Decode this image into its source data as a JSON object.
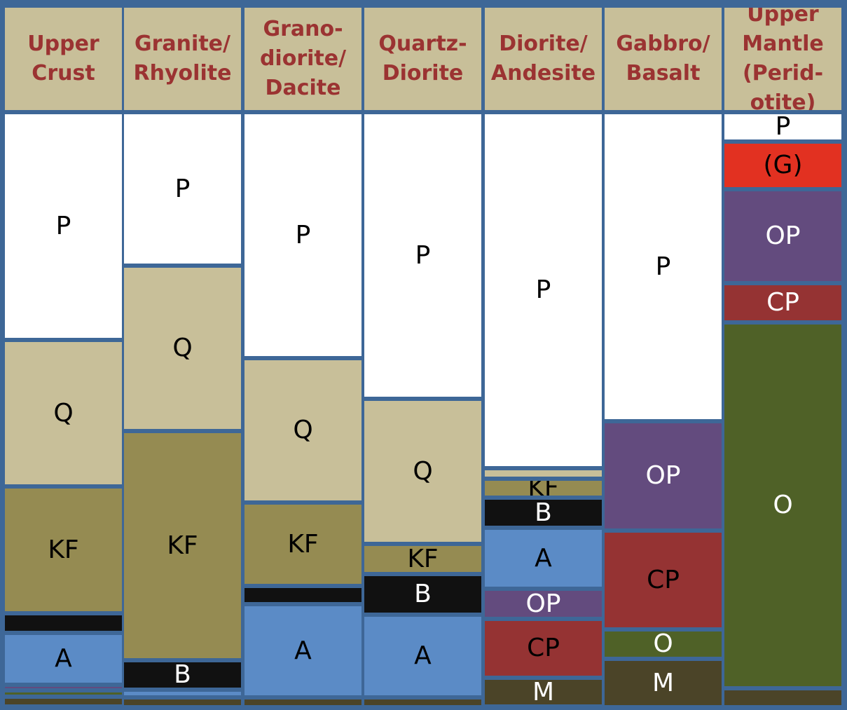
{
  "colors": {
    "frame": "#3e6797",
    "header_bg": "#c8bf99",
    "header_text": "#9b3332",
    "P": "#ffffff",
    "Q": "#c8bf99",
    "KF": "#958b52",
    "B": "#111111",
    "A": "#5b8bc6",
    "OP": "#634b7e",
    "CP": "#953333",
    "O": "#4f6127",
    "M": "#4b4428",
    "G": "#e23121"
  },
  "columns": [
    {
      "header": "Upper\nCrust",
      "segments": [
        {
          "mineral": "P",
          "label": "P",
          "fraction": 0.383,
          "text_color": "#000000"
        },
        {
          "mineral": "Q",
          "label": "Q",
          "fraction": 0.246,
          "text_color": "#000000"
        },
        {
          "mineral": "KF",
          "label": "KF",
          "fraction": 0.213,
          "text_color": "#000000"
        },
        {
          "mineral": "B",
          "label": "",
          "fraction": 0.033,
          "text_color": "#ffffff"
        },
        {
          "mineral": "A",
          "label": "A",
          "fraction": 0.087,
          "text_color": "#000000"
        },
        {
          "mineral": "OP",
          "label": "",
          "fraction": 0.01,
          "text_color": "#ffffff"
        },
        {
          "mineral": "O",
          "label": "",
          "fraction": 0.011,
          "text_color": "#ffffff"
        },
        {
          "mineral": "M",
          "label": "",
          "fraction": 0.017,
          "text_color": "#ffffff"
        }
      ]
    },
    {
      "header": "Granite/\nRhyolite",
      "segments": [
        {
          "mineral": "P",
          "label": "P",
          "fraction": 0.262,
          "text_color": "#000000"
        },
        {
          "mineral": "Q",
          "label": "Q",
          "fraction": 0.283,
          "text_color": "#000000"
        },
        {
          "mineral": "KF",
          "label": "KF",
          "fraction": 0.392,
          "text_color": "#000000"
        },
        {
          "mineral": "B",
          "label": "B",
          "fraction": 0.05,
          "text_color": "#ffffff"
        },
        {
          "mineral": "A",
          "label": "",
          "fraction": 0.013,
          "text_color": "#000000"
        },
        {
          "mineral": "M",
          "label": "",
          "fraction": 0.017,
          "text_color": "#ffffff"
        }
      ]
    },
    {
      "header": "Grano-\ndiorite/\nDacite",
      "segments": [
        {
          "mineral": "P",
          "label": "P",
          "fraction": 0.42,
          "text_color": "#000000"
        },
        {
          "mineral": "Q",
          "label": "Q",
          "fraction": 0.247,
          "text_color": "#000000"
        },
        {
          "mineral": "KF",
          "label": "KF",
          "fraction": 0.143,
          "text_color": "#000000"
        },
        {
          "mineral": "B",
          "label": "",
          "fraction": 0.031,
          "text_color": "#ffffff"
        },
        {
          "mineral": "A",
          "label": "A",
          "fraction": 0.159,
          "text_color": "#000000"
        },
        {
          "mineral": "M",
          "label": "",
          "fraction": 0.017,
          "text_color": "#ffffff"
        }
      ]
    },
    {
      "header": "Quartz-\nDiorite",
      "segments": [
        {
          "mineral": "P",
          "label": "P",
          "fraction": 0.49,
          "text_color": "#000000"
        },
        {
          "mineral": "Q",
          "label": "Q",
          "fraction": 0.248,
          "text_color": "#000000"
        },
        {
          "mineral": "KF",
          "label": "KF",
          "fraction": 0.051,
          "text_color": "#000000"
        },
        {
          "mineral": "B",
          "label": "B",
          "fraction": 0.07,
          "text_color": "#ffffff"
        },
        {
          "mineral": "A",
          "label": "A",
          "fraction": 0.141,
          "text_color": "#000000"
        },
        {
          "mineral": "M",
          "label": "",
          "fraction": 0.017,
          "text_color": "#ffffff"
        }
      ]
    },
    {
      "header": "Diorite/\nAndesite",
      "segments": [
        {
          "mineral": "P",
          "label": "P",
          "fraction": 0.62,
          "text_color": "#000000"
        },
        {
          "mineral": "Q",
          "label": "",
          "fraction": 0.018,
          "text_color": "#000000"
        },
        {
          "mineral": "KF",
          "label": "KF",
          "fraction": 0.033,
          "text_color": "#000000"
        },
        {
          "mineral": "B",
          "label": "B",
          "fraction": 0.053,
          "text_color": "#ffffff"
        },
        {
          "mineral": "A",
          "label": "A",
          "fraction": 0.106,
          "text_color": "#000000"
        },
        {
          "mineral": "OP",
          "label": "OP",
          "fraction": 0.053,
          "text_color": "#ffffff"
        },
        {
          "mineral": "CP",
          "label": "CP",
          "fraction": 0.103,
          "text_color": "#000000"
        },
        {
          "mineral": "M",
          "label": "M",
          "fraction": 0.05,
          "text_color": "#ffffff"
        }
      ]
    },
    {
      "header": "Gabbro/\nBasalt",
      "segments": [
        {
          "mineral": "P",
          "label": "P",
          "fraction": 0.553,
          "text_color": "#000000"
        },
        {
          "mineral": "OP",
          "label": "OP",
          "fraction": 0.196,
          "text_color": "#ffffff"
        },
        {
          "mineral": "CP",
          "label": "CP",
          "fraction": 0.177,
          "text_color": "#000000"
        },
        {
          "mineral": "O",
          "label": "O",
          "fraction": 0.053,
          "text_color": "#ffffff"
        },
        {
          "mineral": "M",
          "label": "M",
          "fraction": 0.086,
          "text_color": "#ffffff"
        }
      ]
    },
    {
      "header": "Upper\nMantle\n(Perid-\notite)",
      "segments": [
        {
          "mineral": "P",
          "label": "P",
          "fraction": 0.051,
          "text_color": "#000000"
        },
        {
          "mineral": "G",
          "label": "(G)",
          "fraction": 0.084,
          "text_color": "#000000"
        },
        {
          "mineral": "OP",
          "label": "OP",
          "fraction": 0.164,
          "text_color": "#ffffff"
        },
        {
          "mineral": "CP",
          "label": "CP",
          "fraction": 0.069,
          "text_color": "#ffffff"
        },
        {
          "mineral": "O",
          "label": "O",
          "fraction": 0.641,
          "text_color": "#ffffff"
        },
        {
          "mineral": "M",
          "label": "",
          "fraction": 0.033,
          "text_color": "#ffffff"
        }
      ]
    }
  ]
}
